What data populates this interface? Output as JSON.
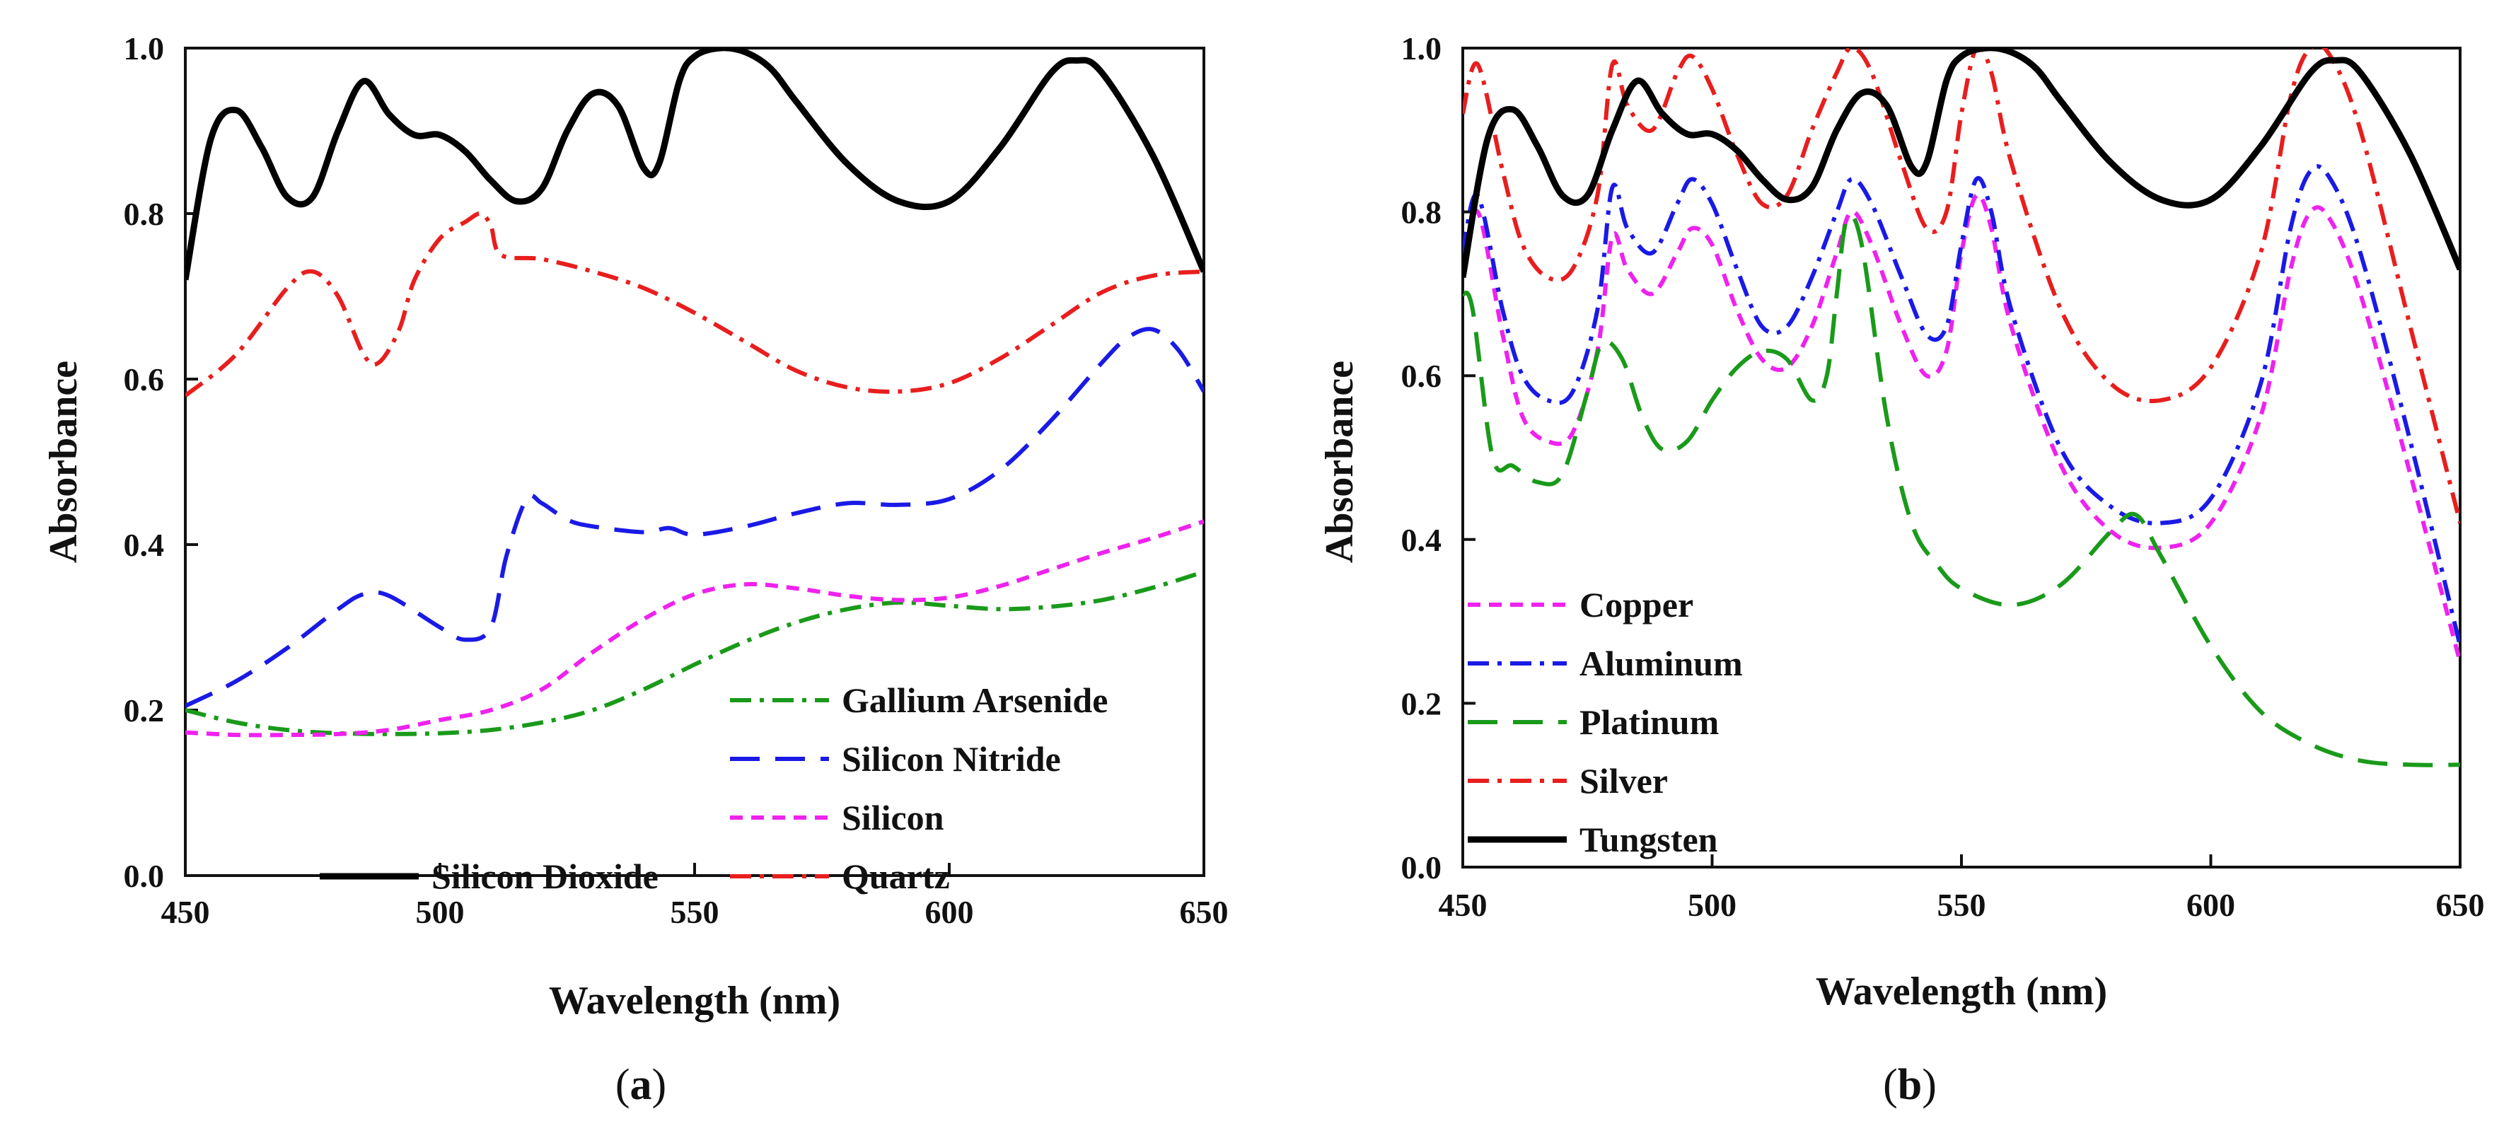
{
  "chart_data": [
    {
      "panel_label": "a",
      "type": "line",
      "xlabel": "Wavelength (nm)",
      "ylabel": "Absorbance",
      "xlim": [
        450,
        650
      ],
      "ylim": [
        0.0,
        1.0
      ],
      "xticks": [
        450,
        500,
        550,
        600,
        650
      ],
      "yticks": [
        0.0,
        0.2,
        0.4,
        0.6,
        0.8,
        1.0
      ],
      "legend": "bottom-right",
      "series": [
        {
          "name": "Gallium Arsenide",
          "color": "#1a9a1a",
          "style": "dash-dot",
          "x": [
            450,
            460,
            470,
            480,
            490,
            500,
            510,
            520,
            530,
            540,
            550,
            560,
            570,
            580,
            590,
            600,
            610,
            620,
            630,
            640,
            650
          ],
          "y": [
            0.2,
            0.185,
            0.176,
            0.172,
            0.171,
            0.172,
            0.176,
            0.185,
            0.2,
            0.225,
            0.255,
            0.283,
            0.306,
            0.322,
            0.33,
            0.326,
            0.322,
            0.325,
            0.333,
            0.348,
            0.367
          ]
        },
        {
          "name": "Silicon Nitride",
          "color": "#1a1ae6",
          "style": "long-dash",
          "x": [
            450,
            460,
            470,
            480,
            485,
            490,
            500,
            505,
            510,
            513,
            517,
            520,
            525,
            530,
            540,
            545,
            550,
            560,
            570,
            580,
            590,
            600,
            610,
            620,
            630,
            635,
            640,
            645,
            650
          ],
          "y": [
            0.205,
            0.235,
            0.275,
            0.322,
            0.34,
            0.338,
            0.3,
            0.285,
            0.3,
            0.385,
            0.455,
            0.45,
            0.43,
            0.422,
            0.415,
            0.42,
            0.412,
            0.422,
            0.438,
            0.45,
            0.448,
            0.455,
            0.49,
            0.55,
            0.62,
            0.65,
            0.66,
            0.635,
            0.585
          ]
        },
        {
          "name": "Silicon",
          "color": "#ee22ee",
          "style": "short-dash",
          "x": [
            450,
            460,
            470,
            480,
            490,
            500,
            510,
            520,
            530,
            540,
            550,
            560,
            570,
            580,
            590,
            600,
            610,
            620,
            630,
            640,
            650
          ],
          "y": [
            0.173,
            0.17,
            0.17,
            0.171,
            0.176,
            0.188,
            0.2,
            0.225,
            0.27,
            0.31,
            0.34,
            0.352,
            0.347,
            0.338,
            0.333,
            0.336,
            0.35,
            0.37,
            0.39,
            0.408,
            0.428
          ]
        },
        {
          "name": "Silicon Dioxide",
          "color": "#000000",
          "style": "solid",
          "x": [
            450,
            455,
            460,
            465,
            470,
            475,
            480,
            485,
            490,
            495,
            500,
            505,
            510,
            515,
            520,
            525,
            530,
            535,
            540,
            543,
            547,
            550,
            555,
            560,
            565,
            570,
            580,
            590,
            600,
            610,
            620,
            625,
            630,
            640,
            650
          ],
          "y": [
            0.72,
            0.89,
            0.925,
            0.88,
            0.82,
            0.82,
            0.9,
            0.96,
            0.92,
            0.895,
            0.895,
            0.875,
            0.84,
            0.815,
            0.83,
            0.9,
            0.945,
            0.93,
            0.855,
            0.86,
            0.96,
            0.99,
            1.0,
            0.995,
            0.975,
            0.935,
            0.86,
            0.815,
            0.815,
            0.88,
            0.97,
            0.985,
            0.97,
            0.87,
            0.73
          ]
        },
        {
          "name": "Quartz",
          "color": "#e81e1e",
          "style": "dash-dot",
          "x": [
            450,
            460,
            470,
            475,
            480,
            485,
            488,
            492,
            495,
            500,
            505,
            508,
            510,
            512,
            520,
            530,
            540,
            550,
            560,
            570,
            580,
            590,
            600,
            610,
            620,
            630,
            640,
            650
          ],
          "y": [
            0.58,
            0.63,
            0.71,
            0.73,
            0.7,
            0.63,
            0.62,
            0.66,
            0.72,
            0.77,
            0.79,
            0.8,
            0.785,
            0.75,
            0.745,
            0.73,
            0.71,
            0.68,
            0.645,
            0.61,
            0.59,
            0.585,
            0.595,
            0.625,
            0.665,
            0.705,
            0.725,
            0.73
          ]
        }
      ],
      "legend_rows": [
        [
          {
            "name": "Gallium Arsenide"
          }
        ],
        [
          {
            "name": "Silicon Nitride"
          }
        ],
        [
          {
            "name": "Silicon"
          }
        ],
        [
          {
            "name": "Silicon Dioxide"
          },
          {
            "name": "Quartz"
          }
        ]
      ]
    },
    {
      "panel_label": "b",
      "type": "line",
      "xlabel": "Wavelength (nm)",
      "ylabel": "Absorbance",
      "xlim": [
        450,
        650
      ],
      "ylim": [
        0.0,
        1.0
      ],
      "xticks": [
        450,
        500,
        550,
        600,
        650
      ],
      "yticks": [
        0.0,
        0.2,
        0.4,
        0.6,
        0.8,
        1.0
      ],
      "legend": "bottom-left",
      "series": [
        {
          "name": "Copper",
          "color": "#ee22ee",
          "style": "short-dash",
          "x": [
            450,
            453,
            458,
            462,
            467,
            472,
            477,
            480,
            483,
            488,
            493,
            496,
            500,
            505,
            510,
            515,
            520,
            525,
            528,
            532,
            538,
            543,
            547,
            550,
            553,
            556,
            560,
            570,
            580,
            590,
            600,
            610,
            616,
            620,
            624,
            630,
            640,
            650
          ],
          "y": [
            0.72,
            0.8,
            0.65,
            0.55,
            0.52,
            0.53,
            0.63,
            0.77,
            0.73,
            0.7,
            0.75,
            0.78,
            0.76,
            0.68,
            0.62,
            0.61,
            0.66,
            0.75,
            0.8,
            0.76,
            0.66,
            0.6,
            0.63,
            0.75,
            0.82,
            0.78,
            0.66,
            0.49,
            0.41,
            0.39,
            0.42,
            0.55,
            0.73,
            0.8,
            0.79,
            0.7,
            0.48,
            0.25
          ]
        },
        {
          "name": "Aluminum",
          "color": "#1a1ae6",
          "style": "dash-dot",
          "x": [
            450,
            453,
            458,
            462,
            467,
            472,
            477,
            480,
            483,
            488,
            493,
            496,
            500,
            505,
            510,
            515,
            520,
            525,
            528,
            532,
            538,
            543,
            547,
            550,
            553,
            556,
            560,
            570,
            580,
            590,
            600,
            610,
            616,
            620,
            624,
            630,
            640,
            650
          ],
          "y": [
            0.75,
            0.82,
            0.68,
            0.6,
            0.57,
            0.58,
            0.68,
            0.83,
            0.78,
            0.75,
            0.81,
            0.84,
            0.81,
            0.73,
            0.66,
            0.66,
            0.72,
            0.8,
            0.84,
            0.81,
            0.72,
            0.65,
            0.66,
            0.76,
            0.84,
            0.8,
            0.68,
            0.51,
            0.44,
            0.42,
            0.45,
            0.59,
            0.78,
            0.85,
            0.84,
            0.75,
            0.52,
            0.27
          ]
        },
        {
          "name": "Platinum",
          "color": "#1a9a1a",
          "style": "long-dash",
          "x": [
            450,
            452,
            456,
            460,
            465,
            470,
            475,
            478,
            482,
            486,
            490,
            495,
            500,
            505,
            510,
            515,
            520,
            523,
            525,
            527,
            530,
            535,
            540,
            545,
            550,
            560,
            570,
            580,
            585,
            590,
            600,
            610,
            620,
            630,
            640,
            650
          ],
          "y": [
            0.7,
            0.68,
            0.5,
            0.49,
            0.47,
            0.48,
            0.58,
            0.64,
            0.62,
            0.55,
            0.51,
            0.52,
            0.57,
            0.61,
            0.63,
            0.62,
            0.57,
            0.6,
            0.7,
            0.79,
            0.76,
            0.55,
            0.42,
            0.37,
            0.34,
            0.32,
            0.345,
            0.41,
            0.43,
            0.38,
            0.27,
            0.19,
            0.15,
            0.13,
            0.125,
            0.125
          ]
        },
        {
          "name": "Silver",
          "color": "#e81e1e",
          "style": "dash-dot",
          "x": [
            450,
            453,
            458,
            462,
            467,
            472,
            477,
            480,
            483,
            488,
            493,
            496,
            500,
            505,
            510,
            515,
            520,
            525,
            528,
            532,
            538,
            543,
            547,
            550,
            553,
            556,
            560,
            570,
            580,
            590,
            600,
            610,
            616,
            620,
            624,
            630,
            640,
            650
          ],
          "y": [
            0.92,
            0.98,
            0.85,
            0.76,
            0.72,
            0.73,
            0.82,
            0.98,
            0.93,
            0.9,
            0.97,
            0.99,
            0.95,
            0.87,
            0.81,
            0.82,
            0.9,
            0.97,
            1.0,
            0.97,
            0.86,
            0.78,
            0.8,
            0.92,
            1.0,
            0.97,
            0.86,
            0.68,
            0.59,
            0.57,
            0.61,
            0.75,
            0.94,
            1.0,
            0.99,
            0.9,
            0.66,
            0.42
          ]
        },
        {
          "name": "Tungsten",
          "color": "#000000",
          "style": "solid",
          "x": [
            450,
            455,
            460,
            465,
            470,
            475,
            480,
            485,
            490,
            495,
            500,
            505,
            510,
            515,
            520,
            525,
            530,
            535,
            540,
            543,
            547,
            550,
            555,
            560,
            565,
            570,
            580,
            590,
            600,
            610,
            620,
            625,
            630,
            640,
            650
          ],
          "y": [
            0.72,
            0.89,
            0.925,
            0.88,
            0.82,
            0.82,
            0.9,
            0.96,
            0.92,
            0.895,
            0.895,
            0.875,
            0.84,
            0.815,
            0.83,
            0.9,
            0.945,
            0.93,
            0.855,
            0.86,
            0.96,
            0.99,
            1.0,
            0.995,
            0.975,
            0.935,
            0.86,
            0.815,
            0.815,
            0.88,
            0.97,
            0.985,
            0.97,
            0.87,
            0.73
          ]
        }
      ],
      "legend_rows": [
        [
          {
            "name": "Copper"
          }
        ],
        [
          {
            "name": "Aluminum"
          }
        ],
        [
          {
            "name": "Platinum"
          }
        ],
        [
          {
            "name": "Silver"
          }
        ],
        [
          {
            "name": "Tungsten"
          }
        ]
      ]
    }
  ],
  "captions": [
    "(a)",
    "(b)"
  ]
}
